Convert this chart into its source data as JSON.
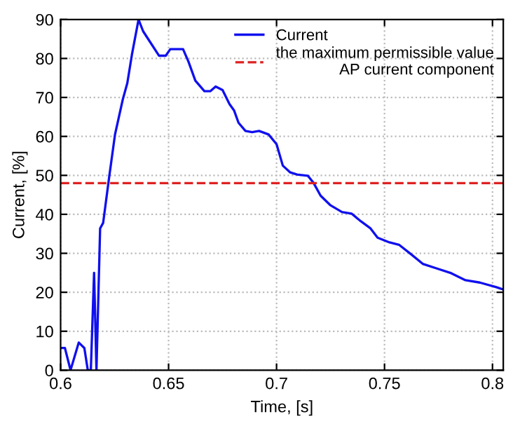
{
  "chart_data": {
    "type": "line",
    "xlabel": "Time, [s]",
    "ylabel": "Current, [%]",
    "xlim": [
      0.6,
      0.805
    ],
    "xticks": [
      0.6,
      0.65,
      0.7,
      0.75,
      0.8
    ],
    "ylim": [
      0,
      90
    ],
    "yticks": [
      0,
      10,
      20,
      30,
      40,
      50,
      60,
      70,
      80,
      90
    ],
    "grid": true,
    "legend": "top right",
    "line_style": "solid",
    "marker": "none",
    "series": [
      {
        "name": "Current",
        "color": "#1010ee",
        "x": [
          0.6,
          0.602,
          0.6046,
          0.6084,
          0.611,
          0.6126,
          0.614,
          0.6155,
          0.6166,
          0.6183,
          0.6197,
          0.6225,
          0.6252,
          0.6288,
          0.6309,
          0.633,
          0.6361,
          0.6382,
          0.6403,
          0.6456,
          0.6487,
          0.6508,
          0.6567,
          0.6592,
          0.6624,
          0.6666,
          0.6693,
          0.6718,
          0.675,
          0.6782,
          0.6803,
          0.6824,
          0.6856,
          0.6887,
          0.6919,
          0.6963,
          0.7,
          0.7029,
          0.7062,
          0.7095,
          0.7145,
          0.7171,
          0.7204,
          0.7248,
          0.7303,
          0.7347,
          0.7391,
          0.7435,
          0.7468,
          0.7523,
          0.7567,
          0.7622,
          0.7677,
          0.7743,
          0.7809,
          0.7875,
          0.7941,
          0.8018,
          0.805
        ],
        "values": [
          5.7,
          5.7,
          0,
          7.1,
          5.7,
          0,
          0,
          25,
          0,
          36.4,
          37.8,
          49.6,
          60.5,
          69.5,
          73.7,
          80.9,
          90,
          87,
          85.2,
          80.7,
          80.7,
          82.4,
          82.4,
          79.2,
          74.3,
          71.6,
          71.6,
          72.8,
          71.9,
          68.3,
          66.7,
          63.5,
          61.4,
          61.1,
          61.4,
          60.5,
          58,
          52.5,
          50.8,
          50.2,
          49.9,
          48.1,
          44.8,
          42.4,
          40.6,
          40.2,
          38.2,
          36.4,
          34,
          32.8,
          32.2,
          29.8,
          27.3,
          26.1,
          24.9,
          23.1,
          22.5,
          21.3,
          20.7
        ]
      }
    ],
    "ref_lines": [
      {
        "axis": "y",
        "value": 48,
        "label": "the maximum permissible value\nAP current component",
        "color": "#dd2222",
        "line_style": "dashed"
      }
    ]
  }
}
